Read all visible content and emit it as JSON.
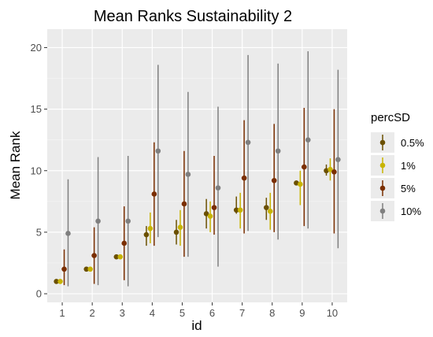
{
  "chart_data": {
    "type": "scatter",
    "title": "Mean Ranks Sustainability 2",
    "xlabel": "id",
    "ylabel": "Mean Rank",
    "categories": [
      "1",
      "2",
      "3",
      "4",
      "5",
      "6",
      "7",
      "8",
      "9",
      "10"
    ],
    "ylim": [
      -0.7,
      21.5
    ],
    "yticks": [
      0,
      5,
      10,
      15,
      20
    ],
    "grid": true,
    "legend_position": "right",
    "legend_title": "percSD",
    "series": [
      {
        "name": "0.5%",
        "color": "#6b5000",
        "values": [
          1.0,
          2.0,
          3.0,
          4.8,
          5.0,
          6.5,
          6.8,
          7.0,
          9.0,
          10.0
        ],
        "lower": [
          1.0,
          2.0,
          3.0,
          3.9,
          4.0,
          5.3,
          6.5,
          6.0,
          8.8,
          9.6
        ],
        "upper": [
          1.0,
          2.0,
          3.0,
          5.5,
          6.0,
          7.7,
          7.9,
          7.8,
          9.2,
          10.5
        ]
      },
      {
        "name": "1%",
        "color": "#c8b400",
        "values": [
          1.0,
          2.0,
          3.0,
          5.3,
          5.4,
          6.3,
          6.8,
          6.7,
          8.9,
          10.1
        ],
        "lower": [
          1.0,
          2.0,
          3.0,
          4.1,
          3.9,
          5.0,
          5.3,
          5.2,
          7.2,
          9.2
        ],
        "upper": [
          1.0,
          2.0,
          3.0,
          6.6,
          6.8,
          7.5,
          8.2,
          8.2,
          10.0,
          11.0
        ]
      },
      {
        "name": "5%",
        "color": "#7a2e00",
        "values": [
          2.0,
          3.1,
          4.1,
          8.1,
          7.3,
          7.0,
          9.4,
          9.2,
          10.3,
          9.9
        ],
        "lower": [
          0.7,
          0.8,
          1.1,
          3.9,
          3.0,
          4.8,
          4.9,
          5.0,
          5.5,
          4.9
        ],
        "upper": [
          3.6,
          5.4,
          7.1,
          12.3,
          11.6,
          11.2,
          14.1,
          13.8,
          15.1,
          15.0
        ]
      },
      {
        "name": "10%",
        "color": "#7f7f7f",
        "values": [
          4.9,
          5.9,
          5.9,
          11.6,
          9.7,
          8.6,
          12.3,
          11.6,
          12.5,
          10.9
        ],
        "lower": [
          0.6,
          0.7,
          0.6,
          4.6,
          3.0,
          2.2,
          5.1,
          4.4,
          5.3,
          3.7
        ],
        "upper": [
          9.3,
          11.1,
          11.2,
          18.6,
          16.4,
          15.2,
          19.4,
          18.7,
          19.7,
          18.2
        ]
      }
    ]
  }
}
